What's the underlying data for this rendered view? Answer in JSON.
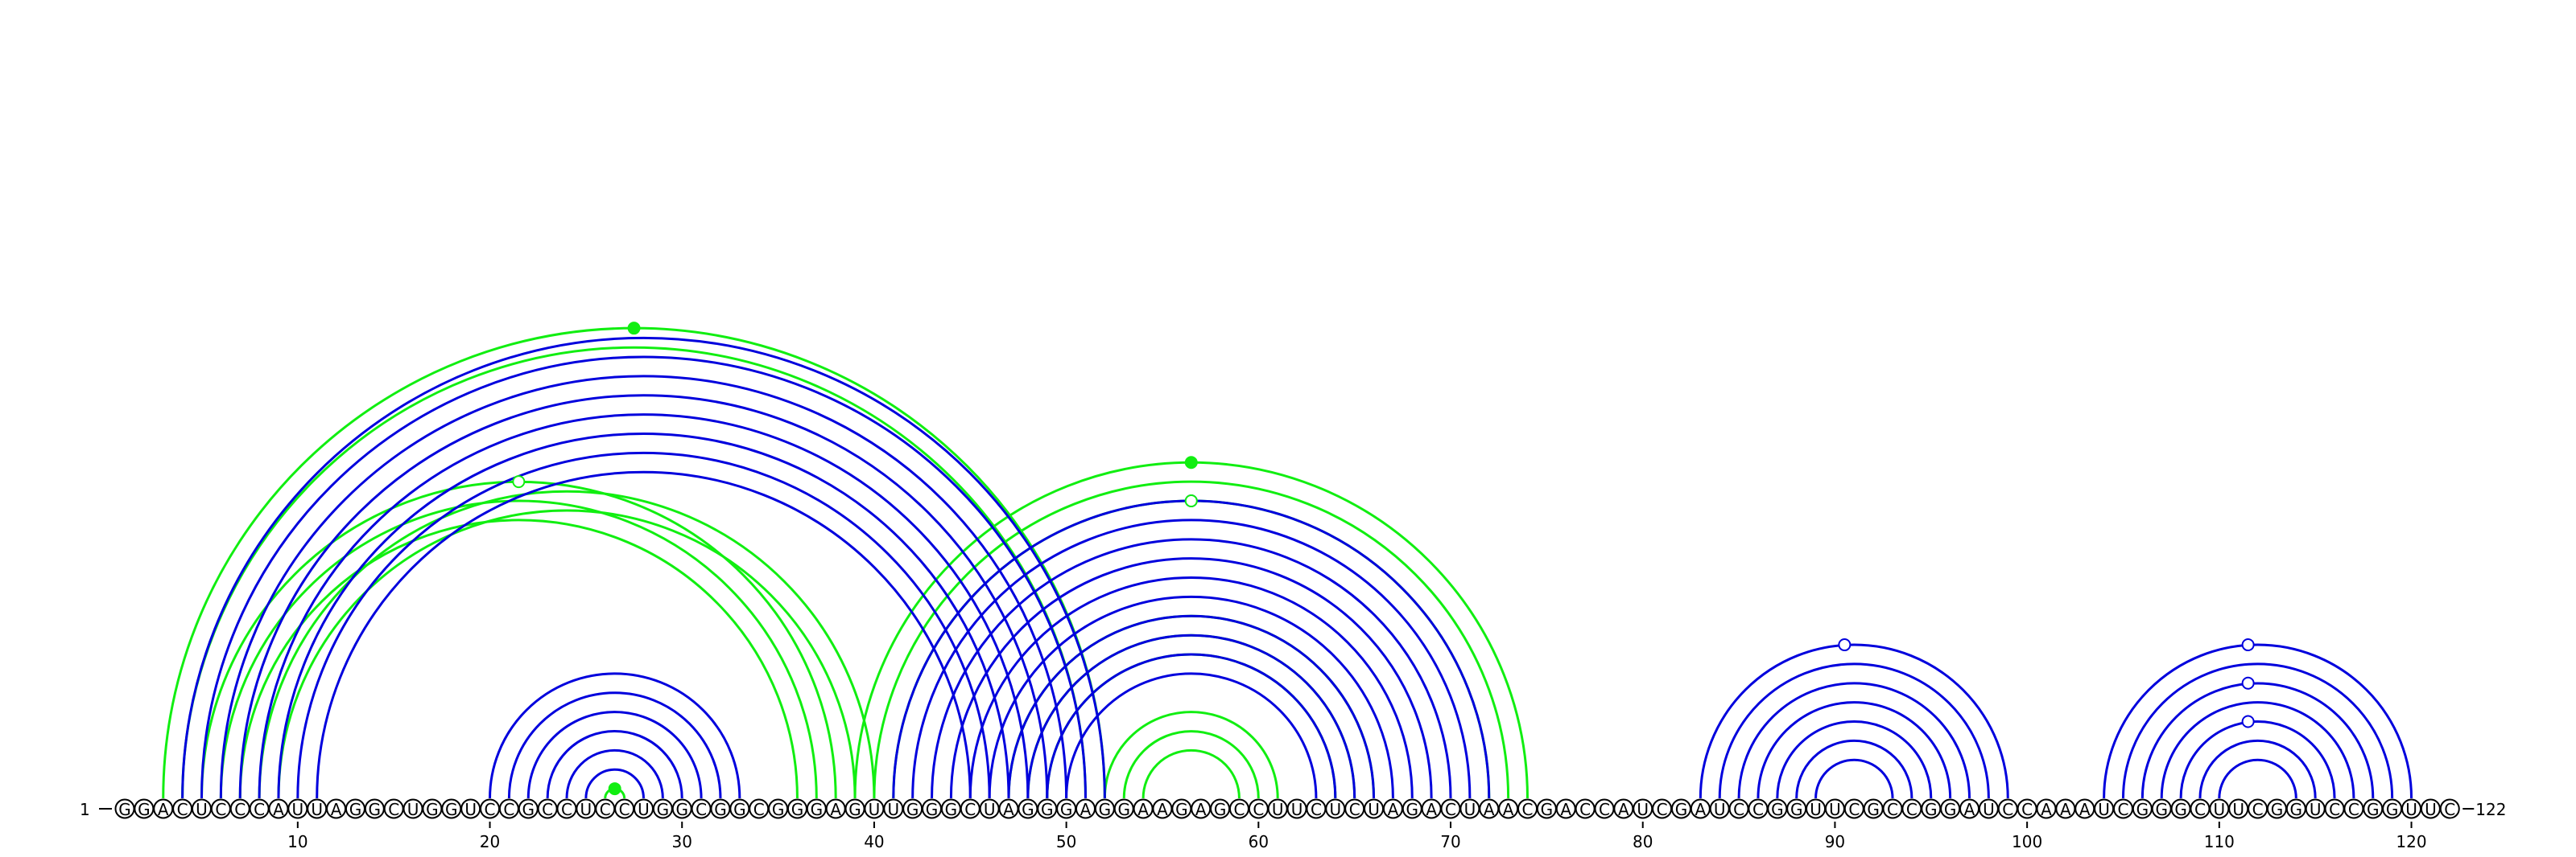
{
  "diagram": {
    "type": "rna-arc-diagram",
    "sequence": "GGACUCCCAUUAGGCUGGUCCGCCUCCUGGCGGCGGGAGUUGGGCUAGGGAGGAAGAGCCUUCUCUAGACUAACGACCAUCGAUCCGGUUCGCCGGAUCCAAAUCGGGCUUCGGUCCGGUUC",
    "start_label": "1",
    "end_label": "122",
    "ticks": [
      10,
      20,
      30,
      40,
      50,
      60,
      70,
      80,
      90,
      100,
      110,
      120
    ],
    "colors": {
      "blue": "#0000dd",
      "green": "#11ee11",
      "text": "#000000",
      "circle_stroke": "#000000"
    },
    "blue_stems": [
      {
        "i": 4,
        "j": 52,
        "n": 8
      },
      {
        "i": 20,
        "j": 33,
        "n": 6
      },
      {
        "i": 41,
        "j": 72,
        "n": 10
      },
      {
        "i": 83,
        "j": 99,
        "n": 7
      },
      {
        "i": 104,
        "j": 120,
        "n": 7
      }
    ],
    "green_stems": [
      {
        "i": 3,
        "j": 52,
        "n": 2
      },
      {
        "i": 5,
        "j": 38,
        "n": 3
      },
      {
        "i": 8,
        "j": 40,
        "n": 2
      },
      {
        "i": 26,
        "j": 27,
        "n": 1
      },
      {
        "i": 39,
        "j": 74,
        "n": 3
      },
      {
        "i": 47,
        "j": 66,
        "n": 3
      },
      {
        "i": 52,
        "j": 61,
        "n": 3
      }
    ],
    "markers": [
      {
        "pos": 27.5,
        "color": "green",
        "filled": true
      },
      {
        "pos": 21.5,
        "color": "green",
        "filled": false
      },
      {
        "pos": 26.5,
        "color": "green",
        "filled": true
      },
      {
        "pos": 56.5,
        "color": "blue",
        "filled": false
      },
      {
        "pos": 56.5,
        "color": "green",
        "filled": true
      },
      {
        "pos": 56.5,
        "color": "green",
        "filled": false
      },
      {
        "pos": 90.5,
        "color": "blue",
        "filled": false
      },
      {
        "pos": 111.5,
        "color": "blue",
        "filled": false
      },
      {
        "pos": 111.5,
        "color": "blue",
        "filled": false
      },
      {
        "pos": 111.5,
        "color": "blue",
        "filled": false
      }
    ]
  }
}
